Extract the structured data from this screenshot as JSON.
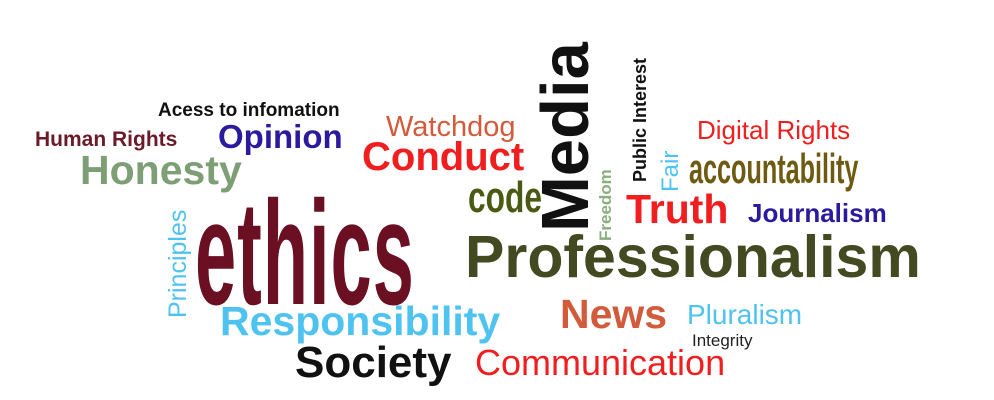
{
  "words": {
    "ethics": {
      "text": "ethics",
      "color": "#6b0f22"
    },
    "access": {
      "text": "Acess to infomation",
      "color": "#111111"
    },
    "human_rights": {
      "text": "Human Rights",
      "color": "#6b1a2a"
    },
    "opinion": {
      "text": "Opinion",
      "color": "#2c1a9e"
    },
    "honesty": {
      "text": "Honesty",
      "color": "#7e9e76"
    },
    "principles": {
      "text": "Principles",
      "color": "#4fc3f0"
    },
    "watchdog": {
      "text": "Watchdog",
      "color": "#d25b3c"
    },
    "conduct": {
      "text": "Conduct",
      "color": "#f01e1e"
    },
    "code": {
      "text": "code",
      "color": "#4a5a12"
    },
    "media": {
      "text": "Media",
      "color": "#111111"
    },
    "freedom": {
      "text": "Freedom",
      "color": "#8aae7e"
    },
    "public_interest": {
      "text": "Public Interest",
      "color": "#111111"
    },
    "fair": {
      "text": "Fair",
      "color": "#4fc3f0"
    },
    "digital_rights": {
      "text": "Digital Rights",
      "color": "#f01e1e"
    },
    "accountability": {
      "text": "accountability",
      "color": "#6e5a10"
    },
    "truth": {
      "text": "Truth",
      "color": "#f01e1e"
    },
    "journalism": {
      "text": "Journalism",
      "color": "#2c1a9e"
    },
    "professionalism": {
      "text": "Professionalism",
      "color": "#434a22"
    },
    "news": {
      "text": "News",
      "color": "#d25b3c"
    },
    "pluralism": {
      "text": "Pluralism",
      "color": "#4fc3f0"
    },
    "integrity": {
      "text": "Integrity",
      "color": "#222222"
    },
    "responsibility": {
      "text": "Responsibility",
      "color": "#4fc3f0"
    },
    "society": {
      "text": "Society",
      "color": "#111111"
    },
    "communication": {
      "text": "Communication",
      "color": "#f01e1e"
    }
  }
}
